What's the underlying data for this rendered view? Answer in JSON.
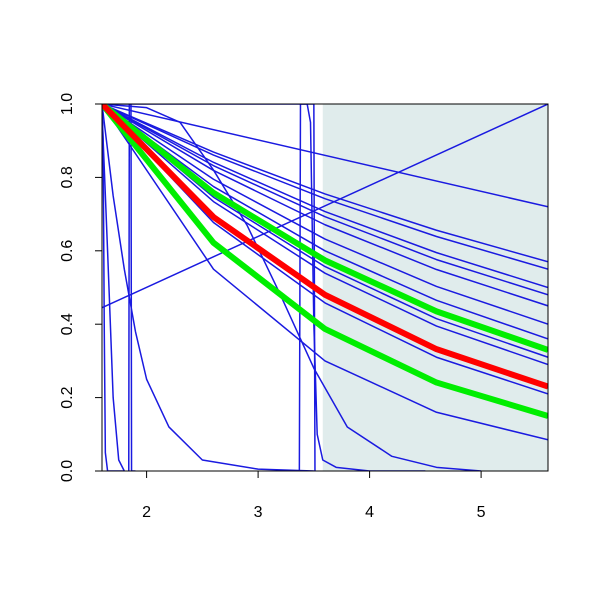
{
  "chart_data": {
    "type": "line",
    "xlim": [
      1.6,
      5.6
    ],
    "ylim": [
      0,
      1.0
    ],
    "xticks": [
      2,
      3,
      4,
      5
    ],
    "yticks": [
      {
        "value": 0,
        "label": "0.0"
      },
      0.2,
      0.4,
      0.6,
      0.8,
      {
        "value": 1.0,
        "label": "1.0"
      }
    ],
    "shaded_xrange": [
      3.58,
      5.6
    ],
    "shade_color": "#e0ecec",
    "series": [
      {
        "color": "#1a1ae0",
        "line_width": 1.5,
        "x": [
          1.6,
          5.6
        ],
        "values": [
          1,
          0.72
        ]
      },
      {
        "color": "#1a1ae0",
        "line_width": 1.5,
        "x": [
          1.6,
          2.6,
          3.6,
          4.6,
          5.6
        ],
        "values": [
          1,
          0.869,
          0.755,
          0.656,
          0.57
        ]
      },
      {
        "color": "#1a1ae0",
        "line_width": 1.5,
        "x": [
          1.6,
          2.6,
          3.6,
          4.6,
          5.6
        ],
        "values": [
          1,
          0.861,
          0.742,
          0.639,
          0.55
        ]
      },
      {
        "color": "#1a1ae0",
        "line_width": 1.5,
        "x": [
          1.6,
          2.6,
          3.6,
          4.6,
          5.6
        ],
        "values": [
          1,
          0.841,
          0.707,
          0.595,
          0.5
        ]
      },
      {
        "color": "#1a1ae0",
        "line_width": 1.5,
        "x": [
          1.6,
          2.6,
          3.6,
          4.6,
          5.6
        ],
        "values": [
          1,
          0.832,
          0.693,
          0.576,
          0.48
        ]
      },
      {
        "color": "#1a1ae0",
        "line_width": 1.5,
        "x": [
          1.6,
          2.6,
          3.6,
          4.6,
          5.6
        ],
        "values": [
          1,
          0.819,
          0.671,
          0.549,
          0.45
        ]
      },
      {
        "color": "#1a1ae0",
        "line_width": 1.5,
        "x": [
          1.6,
          2.6,
          3.6,
          4.6,
          5.6
        ],
        "values": [
          1,
          0.795,
          0.632,
          0.503,
          0.4
        ]
      },
      {
        "color": "#1a1ae0",
        "line_width": 1.5,
        "x": [
          1.6,
          2.6,
          3.6,
          4.6,
          5.6
        ],
        "values": [
          1,
          0.775,
          0.6,
          0.465,
          0.36
        ]
      },
      {
        "color": "#1a1ae0",
        "line_width": 1.5,
        "x": [
          1.6,
          2.6,
          3.6,
          4.6,
          5.6
        ],
        "values": [
          1,
          0.746,
          0.557,
          0.415,
          0.31
        ]
      },
      {
        "color": "#1a1ae0",
        "line_width": 1.5,
        "x": [
          1.6,
          2.6,
          3.6,
          4.6,
          5.6
        ],
        "values": [
          1,
          0.734,
          0.539,
          0.395,
          0.29
        ]
      },
      {
        "color": "#1a1ae0",
        "line_width": 1.5,
        "x": [
          1.6,
          2.6,
          3.6,
          4.6,
          5.6
        ],
        "values": [
          1,
          0.677,
          0.458,
          0.31,
          0.21
        ]
      },
      {
        "color": "#1a1ae0",
        "line_width": 1.5,
        "x": [
          1.6,
          2.6,
          3.6,
          4.6,
          5.6
        ],
        "values": [
          1,
          0.55,
          0.3,
          0.16,
          0.085
        ]
      },
      {
        "color": "#1a1ae0",
        "line_width": 1.5,
        "x": [
          1.6,
          5.6
        ],
        "values": [
          0.445,
          1.0
        ]
      },
      {
        "color": "#1a1ae0",
        "line_width": 1.5,
        "x": [
          1.6,
          1.61,
          1.62,
          1.63,
          1.65,
          1.8
        ],
        "values": [
          1,
          0.9,
          0.4,
          0.05,
          0,
          0
        ]
      },
      {
        "color": "#1a1ae0",
        "line_width": 1.5,
        "x": [
          1.6,
          1.65,
          1.7,
          1.75,
          1.8
        ],
        "values": [
          0.98,
          0.6,
          0.2,
          0.03,
          0
        ]
      },
      {
        "color": "#1a1ae0",
        "line_width": 1.5,
        "x": [
          1.84,
          1.845,
          1.86,
          1.865,
          1.9
        ],
        "values": [
          0,
          1.0,
          1.0,
          0,
          0
        ]
      },
      {
        "color": "#1a1ae0",
        "line_width": 1.5,
        "x": [
          1.6,
          1.7,
          1.8,
          1.9,
          2.0,
          2.2,
          2.5,
          3.0,
          3.5
        ],
        "values": [
          1,
          0.75,
          0.55,
          0.38,
          0.25,
          0.12,
          0.03,
          0.005,
          0
        ]
      },
      {
        "color": "#1a1ae0",
        "line_width": 1.5,
        "x": [
          1.6,
          2.0,
          2.3,
          2.6,
          2.9,
          3.2,
          3.5,
          3.8,
          4.2,
          4.6,
          5.0
        ],
        "values": [
          1,
          0.99,
          0.95,
          0.82,
          0.67,
          0.48,
          0.28,
          0.12,
          0.04,
          0.01,
          0
        ]
      },
      {
        "color": "#1a1ae0",
        "line_width": 1.5,
        "x": [
          1.6,
          3.45
        ],
        "values": [
          1,
          1
        ]
      },
      {
        "color": "#1a1ae0",
        "line_width": 1.5,
        "x": [
          3.37,
          3.38,
          3.5,
          3.51
        ],
        "values": [
          0,
          1,
          1,
          0
        ]
      },
      {
        "color": "#1a1ae0",
        "line_width": 1.5,
        "x": [
          3.44,
          3.47,
          3.5,
          3.53,
          3.58,
          3.7,
          4.0,
          4.5
        ],
        "values": [
          1,
          0.95,
          0.4,
          0.1,
          0.03,
          0.01,
          0,
          0
        ]
      },
      {
        "color": "#00ee00",
        "line_width": 6,
        "x": [
          1.6,
          2.6,
          3.6,
          4.6,
          5.6
        ],
        "values": [
          1,
          0.758,
          0.574,
          0.435,
          0.33
        ]
      },
      {
        "color": "#00ee00",
        "line_width": 6,
        "x": [
          1.6,
          2.6,
          3.6,
          4.6,
          5.6
        ],
        "values": [
          1,
          0.622,
          0.387,
          0.241,
          0.15
        ]
      },
      {
        "color": "#ff0000",
        "line_width": 6,
        "x": [
          1.6,
          2.6,
          3.6,
          4.6,
          5.6
        ],
        "values": [
          1,
          0.692,
          0.48,
          0.332,
          0.23
        ]
      }
    ]
  }
}
